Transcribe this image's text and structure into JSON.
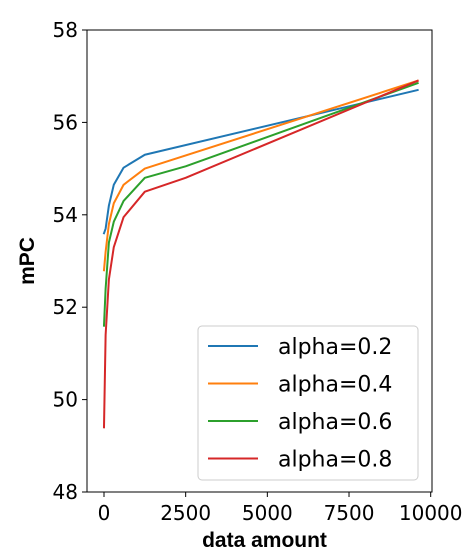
{
  "chart_data": {
    "type": "line",
    "xlabel": "data amount",
    "ylabel": "mPC",
    "xlim": [
      -520,
      10040
    ],
    "ylim": [
      48,
      58
    ],
    "xticks": [
      0,
      2500,
      5000,
      7500,
      10000
    ],
    "yticks": [
      48,
      50,
      52,
      54,
      56,
      58
    ],
    "xtick_labels": [
      "0",
      "2500",
      "5000",
      "7500",
      "10000"
    ],
    "ytick_labels": [
      "48",
      "50",
      "52",
      "54",
      "56",
      "58"
    ],
    "grid": false,
    "legend_position": "bottom-right",
    "series": [
      {
        "name": "alpha=0.2",
        "color": "#1f77b4",
        "x": [
          0,
          50,
          150,
          300,
          600,
          1250,
          9600
        ],
        "y": [
          53.6,
          53.7,
          54.2,
          54.65,
          55.02,
          55.3,
          56.7
        ]
      },
      {
        "name": "alpha=0.4",
        "color": "#ff7f0e",
        "x": [
          0,
          50,
          150,
          300,
          600,
          1250,
          9600
        ],
        "y": [
          52.8,
          53.2,
          53.8,
          54.25,
          54.65,
          55.0,
          56.9
        ]
      },
      {
        "name": "alpha=0.6",
        "color": "#2ca02c",
        "x": [
          0,
          50,
          150,
          300,
          600,
          1250,
          2500,
          9600
        ],
        "y": [
          51.6,
          52.4,
          53.4,
          53.85,
          54.3,
          54.8,
          55.05,
          56.85
        ]
      },
      {
        "name": "alpha=0.8",
        "color": "#d62728",
        "x": [
          0,
          50,
          150,
          300,
          600,
          1250,
          2500,
          9600
        ],
        "y": [
          49.4,
          51.4,
          52.6,
          53.3,
          53.95,
          54.5,
          54.8,
          56.9
        ]
      }
    ]
  }
}
